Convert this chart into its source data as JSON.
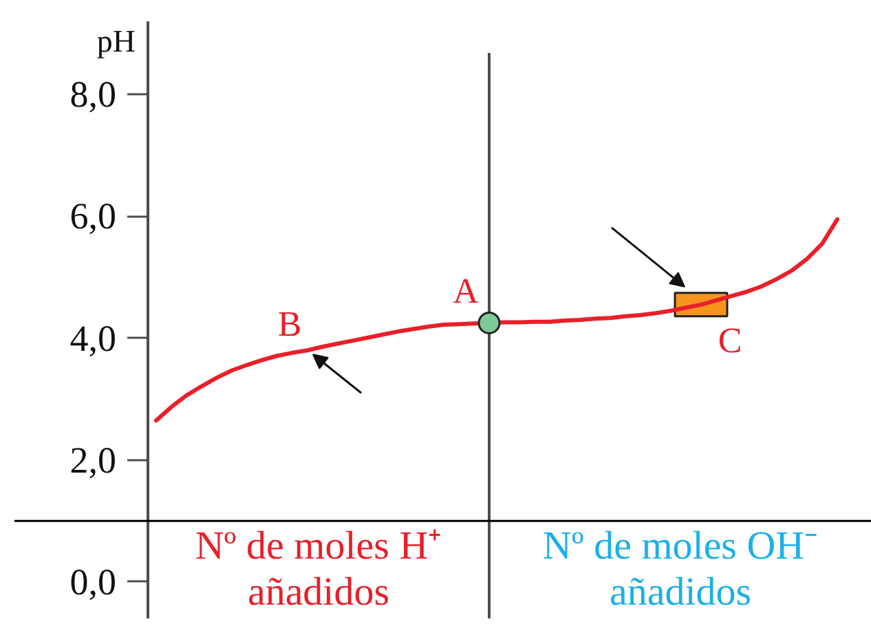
{
  "chart_data": {
    "type": "line",
    "categories": [
      null,
      null,
      null,
      null,
      null,
      null,
      null,
      null,
      null,
      null,
      null,
      null,
      null,
      null,
      null,
      null,
      null,
      null,
      null,
      null,
      null,
      null,
      null,
      null,
      null,
      null,
      null,
      null,
      null,
      null,
      null,
      null,
      null,
      null,
      null,
      null,
      null,
      null,
      null,
      null,
      null,
      null,
      null,
      null,
      null,
      null
    ],
    "series": [
      {
        "type": "scatter",
        "name": "C",
        "color": "#f7941d",
        "marker": "square",
        "values": [
          null,
          null,
          null,
          null,
          null,
          null,
          null,
          null,
          null,
          null,
          null,
          null,
          null,
          null,
          null,
          null,
          null,
          null,
          null,
          null,
          null,
          null,
          null,
          null,
          null,
          null,
          null,
          null,
          null,
          null,
          null,
          null,
          null,
          null,
          null,
          null,
          4.55,
          null,
          null,
          null,
          null,
          null,
          null,
          null,
          null,
          null
        ]
      },
      {
        "color": "#e8202a",
        "values": [
          2.65,
          2.87,
          3.06,
          3.21,
          3.35,
          3.47,
          3.56,
          3.64,
          3.71,
          3.76,
          3.8,
          3.86,
          3.91,
          3.96,
          4.01,
          4.06,
          4.11,
          4.15,
          4.19,
          4.22,
          4.23,
          4.24,
          4.25,
          4.26,
          4.26,
          4.27,
          4.27,
          4.29,
          4.3,
          4.32,
          4.33,
          4.36,
          4.38,
          4.41,
          4.45,
          4.5,
          4.55,
          4.62,
          4.69,
          4.76,
          4.85,
          4.97,
          5.11,
          5.3,
          5.55,
          5.95
        ]
      },
      {
        "type": "scatter",
        "name": "A",
        "color": "#7dc99a",
        "marker": "circle",
        "values": [
          null,
          null,
          null,
          null,
          null,
          null,
          null,
          null,
          null,
          null,
          null,
          null,
          null,
          null,
          null,
          null,
          null,
          null,
          null,
          null,
          null,
          null,
          4.25,
          null,
          null,
          null,
          null,
          null,
          null,
          null,
          null,
          null,
          null,
          null,
          null,
          null,
          null,
          null,
          null,
          null,
          null,
          null,
          null,
          null,
          null,
          null
        ]
      }
    ],
    "ylabel": "pH",
    "ylim": [
      -0.6,
      9.2
    ],
    "yticks": [
      {
        "value": 0,
        "label": "0,0"
      },
      {
        "value": 2,
        "label": "2,0"
      },
      {
        "value": 4,
        "label": "4,0"
      },
      {
        "value": 6,
        "label": "6,0"
      },
      {
        "value": 8,
        "label": "8,0"
      }
    ],
    "ref_lines": [
      {
        "axis": "y",
        "value": 1.0,
        "color": "#000000"
      }
    ],
    "annotations": [
      {
        "text": "B",
        "y": 3.8
      },
      "Nº de moles H⁺\nañadidos",
      "Nº de moles OH⁻\nañadidos"
    ]
  }
}
